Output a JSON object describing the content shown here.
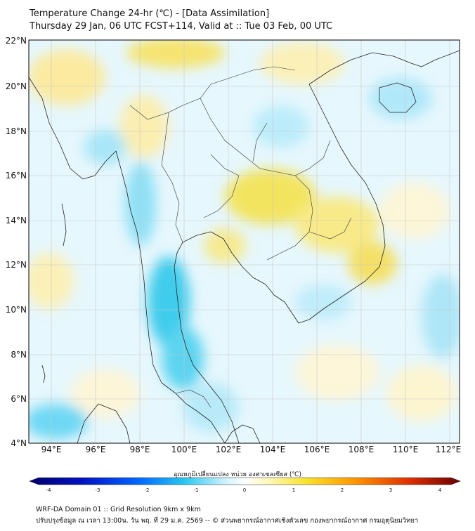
{
  "title": {
    "line1": "Temperature Change 24-hr (℃) - [Data Assimilation]",
    "line2": "Thursday 29 Jan, 06 UTC FCST+114, Valid at :: Tue 03 Feb, 00 UTC"
  },
  "map": {
    "lat_labels": [
      "22°N",
      "20°N",
      "18°N",
      "16°N",
      "14°N",
      "12°N",
      "10°N",
      "8°N",
      "6°N",
      "4°N"
    ],
    "lon_labels": [
      "94°E",
      "96°E",
      "98°E",
      "100°E",
      "102°E",
      "104°E",
      "106°E",
      "108°E",
      "110°E",
      "112°E"
    ],
    "lat_range": [
      4,
      22
    ],
    "lon_range": [
      93,
      112.5
    ],
    "grid": true
  },
  "colorbar": {
    "title": "อุณหภูมิเปลี่ยนแปลง หน่วย องศาเซลเซียส (℃)",
    "ticks": [
      "-4",
      "-3",
      "-2",
      "-1",
      "0",
      "1",
      "2",
      "3",
      "4"
    ],
    "range": [
      -4,
      4
    ],
    "colors": [
      "#000070",
      "#0000d0",
      "#0060ff",
      "#30c8f0",
      "#d8f4ff",
      "#ffffff",
      "#fff6b0",
      "#f8e020",
      "#ff9800",
      "#e03000",
      "#700000"
    ]
  },
  "footer": {
    "line1": "WRF-DA Domain 01 :: Grid Resolution 9km x 9km",
    "line2": "ปรับปรุงข้อมูล ณ เวลา 13:00น. วัน พฤ. ที่ 29 ม.ค. 2569 -- © ส่วนพยากรณ์อากาศเชิงตัวเลข กองพยากรณ์อากาศ กรมอุตุนิยมวิทยา"
  }
}
